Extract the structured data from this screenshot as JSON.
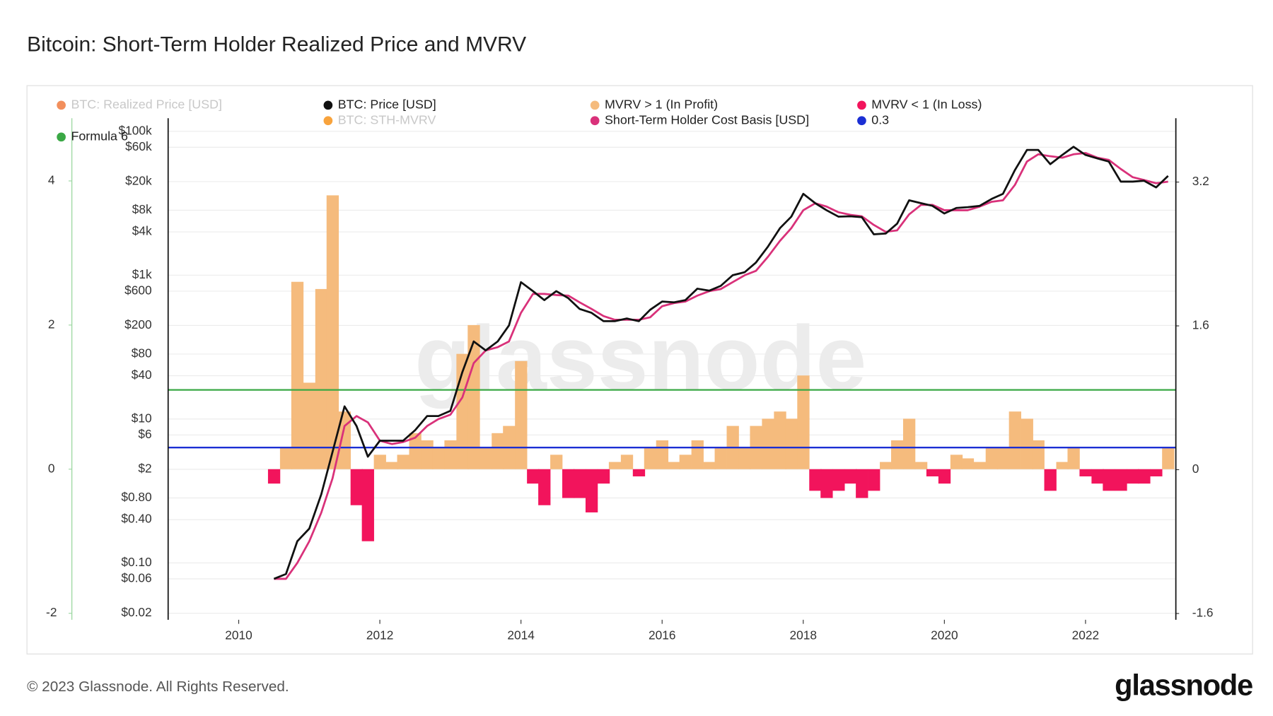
{
  "chart_data": {
    "type": "line",
    "title": "Bitcoin: Short-Term Holder Realized Price and MVRV",
    "watermark": "glassnode",
    "footer": "© 2023 Glassnode. All Rights Reserved.",
    "logo": "glassnode",
    "xlim": [
      2009,
      2023.28
    ],
    "xticks": [
      2010,
      2012,
      2014,
      2016,
      2018,
      2020,
      2022
    ],
    "ylim": [
      -2.09,
      4.87
    ],
    "yticks": [
      -2,
      0,
      2,
      4
    ],
    "y2lim": [
      -1.67,
      3.91
    ],
    "y2ticks": [
      -1.6,
      0,
      1.6,
      3.2
    ],
    "y3lim": [
      0.0162,
      152000
    ],
    "y3log": true,
    "y3ticks": [
      {
        "value": 0.02,
        "label": "$0.02"
      },
      {
        "value": 0.06,
        "label": "$0.06"
      },
      {
        "value": 0.1,
        "label": "$0.10"
      },
      {
        "value": 0.4,
        "label": "$0.40"
      },
      {
        "value": 0.8,
        "label": "$0.80"
      },
      {
        "value": 2,
        "label": "$2"
      },
      {
        "value": 6,
        "label": "$6"
      },
      {
        "value": 10,
        "label": "$10"
      },
      {
        "value": 40,
        "label": "$40"
      },
      {
        "value": 80,
        "label": "$80"
      },
      {
        "value": 200,
        "label": "$200"
      },
      {
        "value": 600,
        "label": "$600"
      },
      {
        "value": 1000,
        "label": "$1k"
      },
      {
        "value": 4000,
        "label": "$4k"
      },
      {
        "value": 8000,
        "label": "$8k"
      },
      {
        "value": 20000,
        "label": "$20k"
      },
      {
        "value": 60000,
        "label": "$60k"
      },
      {
        "value": 100000,
        "label": "$100k"
      }
    ],
    "grid": true,
    "x": [
      2010.5,
      2010.67,
      2010.83,
      2011.0,
      2011.17,
      2011.33,
      2011.5,
      2011.67,
      2011.83,
      2012.0,
      2012.17,
      2012.33,
      2012.5,
      2012.67,
      2012.83,
      2013.0,
      2013.17,
      2013.33,
      2013.5,
      2013.67,
      2013.83,
      2014.0,
      2014.17,
      2014.33,
      2014.5,
      2014.67,
      2014.83,
      2015.0,
      2015.17,
      2015.33,
      2015.5,
      2015.67,
      2015.83,
      2016.0,
      2016.17,
      2016.33,
      2016.5,
      2016.67,
      2016.83,
      2017.0,
      2017.17,
      2017.33,
      2017.5,
      2017.67,
      2017.83,
      2018.0,
      2018.17,
      2018.33,
      2018.5,
      2018.67,
      2018.83,
      2019.0,
      2019.17,
      2019.33,
      2019.5,
      2019.67,
      2019.83,
      2020.0,
      2020.17,
      2020.33,
      2020.5,
      2020.67,
      2020.83,
      2021.0,
      2021.17,
      2021.33,
      2021.5,
      2021.67,
      2021.83,
      2022.0,
      2022.17,
      2022.33,
      2022.5,
      2022.67,
      2022.83,
      2023.0,
      2023.17
    ],
    "bars": {
      "name": "MVRV > 1 (In Profit)",
      "color": "#f5bb7d",
      "negative_name": "MVRV < 1 (In Loss)",
      "negative_color": "#f2145c",
      "axis": "y",
      "values": [
        -0.2,
        0.3,
        2.6,
        1.2,
        2.5,
        3.8,
        0.8,
        -0.5,
        -1.0,
        0.2,
        0.1,
        0.2,
        0.5,
        0.4,
        0.3,
        0.4,
        1.6,
        2.0,
        0.3,
        0.5,
        0.6,
        1.5,
        -0.2,
        -0.5,
        0.2,
        -0.4,
        -0.4,
        -0.6,
        -0.2,
        0.1,
        0.2,
        -0.1,
        0.3,
        0.4,
        0.1,
        0.2,
        0.4,
        0.1,
        0.3,
        0.6,
        0.3,
        0.6,
        0.7,
        0.8,
        0.7,
        1.3,
        -0.3,
        -0.4,
        -0.3,
        -0.2,
        -0.4,
        -0.3,
        0.1,
        0.4,
        0.7,
        0.1,
        -0.1,
        -0.2,
        0.2,
        0.15,
        0.1,
        0.3,
        0.3,
        0.8,
        0.7,
        0.4,
        -0.3,
        0.1,
        0.3,
        -0.1,
        -0.2,
        -0.3,
        -0.3,
        -0.2,
        -0.2,
        -0.1,
        0.3
      ]
    },
    "series": [
      {
        "name": "Short-Term Holder Cost Basis [USD]",
        "color": "#d9317a",
        "axis": "y3",
        "values": [
          0.06,
          0.06,
          0.1,
          0.2,
          0.5,
          1.5,
          8,
          11,
          9,
          5,
          4.5,
          4.8,
          5.5,
          8,
          10,
          11.5,
          20,
          60,
          90,
          100,
          120,
          300,
          550,
          550,
          530,
          520,
          420,
          340,
          270,
          240,
          240,
          240,
          260,
          370,
          410,
          430,
          520,
          600,
          640,
          800,
          1000,
          1150,
          1800,
          3000,
          4500,
          8000,
          10000,
          9000,
          7500,
          6900,
          6600,
          5000,
          4000,
          4200,
          7000,
          9500,
          9500,
          8000,
          8000,
          8000,
          9000,
          10500,
          11000,
          18000,
          38000,
          48000,
          45000,
          43000,
          48000,
          50000,
          43000,
          40000,
          30000,
          23000,
          21000,
          19000,
          20000
        ]
      },
      {
        "name": "BTC: Price [USD]",
        "color": "#111111",
        "axis": "y3",
        "values": [
          0.06,
          0.07,
          0.2,
          0.3,
          0.9,
          3.5,
          15,
          8,
          3,
          5,
          5,
          5,
          7,
          11,
          11,
          13,
          45,
          120,
          90,
          120,
          200,
          800,
          600,
          450,
          600,
          480,
          340,
          300,
          230,
          230,
          250,
          230,
          330,
          430,
          420,
          450,
          650,
          610,
          710,
          1000,
          1100,
          1500,
          2500,
          4500,
          6500,
          13500,
          10000,
          8000,
          6500,
          6600,
          6400,
          3700,
          3800,
          5200,
          11000,
          10000,
          9200,
          7200,
          8600,
          8800,
          9200,
          11500,
          13500,
          29000,
          55000,
          55000,
          35000,
          47000,
          61000,
          47000,
          42000,
          38000,
          20000,
          20000,
          20500,
          16600,
          24000
        ]
      }
    ],
    "hlines": [
      {
        "name": "Formula 6",
        "color": "#3aa845",
        "value": 1.1,
        "axis": "y"
      },
      {
        "name": "0.3",
        "color": "#1b2fd4",
        "value": 0.3,
        "axis": "y"
      }
    ],
    "hidden_series": [
      {
        "name": "BTC: Realized Price [USD]",
        "color": "#f07b3f"
      },
      {
        "name": "BTC: STH-MVRV",
        "color": "#f7931a"
      }
    ]
  }
}
